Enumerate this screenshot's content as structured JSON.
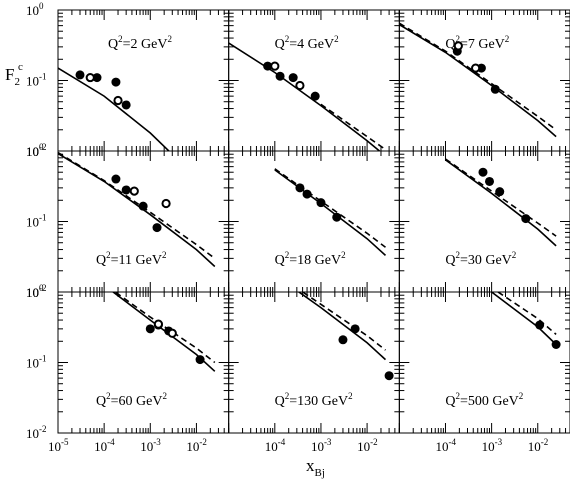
{
  "chart_data": {
    "type": "scatter",
    "xlabel": "x",
    "xlabel_sub": "Bj",
    "ylabel": "F",
    "ylabel_sub": "2",
    "ylabel_sup": "c",
    "x_scale": "log",
    "y_scale": "log",
    "xlim": [
      1e-05,
      0.05
    ],
    "ylim": [
      0.01,
      1
    ],
    "grid": false,
    "x_tick_labels": [
      {
        "base": "10",
        "exp": "-5",
        "value": 1e-05
      },
      {
        "base": "10",
        "exp": "-4",
        "value": 0.0001
      },
      {
        "base": "10",
        "exp": "-3",
        "value": 0.001
      },
      {
        "base": "10",
        "exp": "-2",
        "value": 0.01
      }
    ],
    "y_tick_labels": [
      {
        "base": "10",
        "exp": "0",
        "value": 1
      },
      {
        "base": "10",
        "exp": "-1",
        "value": 0.1
      },
      {
        "base": "10",
        "exp": "-2",
        "value": 0.01
      }
    ],
    "panels": [
      {
        "label": "Q",
        "label_sup": "2",
        "label_value": "=2 GeV",
        "label_unit_sup": "2",
        "solid": [
          [
            1e-05,
            0.15
          ],
          [
            0.0001,
            0.06
          ],
          [
            0.001,
            0.018
          ],
          [
            0.005,
            0.0065
          ]
        ],
        "dashed": [],
        "filled": [
          [
            3e-05,
            0.12
          ],
          [
            7e-05,
            0.11
          ],
          [
            0.00018,
            0.095
          ],
          [
            0.0003,
            0.045
          ]
        ],
        "open": [
          [
            5e-05,
            0.11
          ],
          [
            0.0002,
            0.052
          ]
        ]
      },
      {
        "label": "Q",
        "label_sup": "2",
        "label_value": "=4 GeV",
        "label_unit_sup": "2",
        "solid": [
          [
            1e-05,
            0.34
          ],
          [
            0.0001,
            0.13
          ],
          [
            0.001,
            0.044
          ],
          [
            0.01,
            0.014
          ],
          [
            0.025,
            0.0085
          ]
        ],
        "dashed": [
          [
            0.001,
            0.046
          ],
          [
            0.01,
            0.016
          ],
          [
            0.025,
            0.0105
          ]
        ],
        "filled": [
          [
            7e-05,
            0.16
          ],
          [
            0.00013,
            0.115
          ],
          [
            0.00025,
            0.11
          ],
          [
            0.00075,
            0.06
          ]
        ],
        "open": [
          [
            0.0001,
            0.16
          ],
          [
            0.00035,
            0.085
          ]
        ]
      },
      {
        "label": "Q",
        "label_sup": "2",
        "label_value": "=7 GeV",
        "label_unit_sup": "2",
        "solid": [
          [
            1e-05,
            0.62
          ],
          [
            0.0001,
            0.25
          ],
          [
            0.001,
            0.085
          ],
          [
            0.01,
            0.027
          ],
          [
            0.025,
            0.016
          ]
        ],
        "dashed": [
          [
            1e-05,
            0.65
          ],
          [
            0.0001,
            0.26
          ],
          [
            0.001,
            0.09
          ],
          [
            0.01,
            0.031
          ],
          [
            0.025,
            0.02
          ]
        ],
        "filled": [
          [
            0.00018,
            0.26
          ],
          [
            0.0006,
            0.15
          ],
          [
            0.0012,
            0.075
          ]
        ],
        "open": [
          [
            0.00019,
            0.31
          ],
          [
            0.00045,
            0.15
          ]
        ]
      },
      {
        "label": "Q",
        "label_sup": "2",
        "label_value": "=11 GeV",
        "label_unit_sup": "2",
        "solid": [
          [
            1e-05,
            0.92
          ],
          [
            0.0001,
            0.37
          ],
          [
            0.001,
            0.125
          ],
          [
            0.01,
            0.04
          ],
          [
            0.025,
            0.023
          ]
        ],
        "dashed": [
          [
            1e-05,
            0.95
          ],
          [
            0.0001,
            0.38
          ],
          [
            0.001,
            0.135
          ],
          [
            0.01,
            0.047
          ],
          [
            0.025,
            0.03
          ]
        ],
        "filled": [
          [
            0.00018,
            0.4
          ],
          [
            0.0003,
            0.28
          ],
          [
            0.0007,
            0.165
          ],
          [
            0.0014,
            0.082
          ]
        ],
        "open": [
          [
            0.00045,
            0.27
          ],
          [
            0.0022,
            0.18
          ]
        ]
      },
      {
        "label": "Q",
        "label_sup": "2",
        "label_value": "=18 GeV",
        "label_unit_sup": "2",
        "solid": [
          [
            0.0001,
            0.54
          ],
          [
            0.001,
            0.18
          ],
          [
            0.01,
            0.057
          ],
          [
            0.025,
            0.033
          ]
        ],
        "dashed": [
          [
            0.0001,
            0.56
          ],
          [
            0.001,
            0.195
          ],
          [
            0.01,
            0.068
          ],
          [
            0.025,
            0.043
          ]
        ],
        "filled": [
          [
            0.00035,
            0.3
          ],
          [
            0.0005,
            0.245
          ],
          [
            0.001,
            0.185
          ],
          [
            0.0022,
            0.115
          ]
        ],
        "open": []
      },
      {
        "label": "Q",
        "label_sup": "2",
        "label_value": "=30 GeV",
        "label_unit_sup": "2",
        "solid": [
          [
            0.0001,
            0.75
          ],
          [
            0.001,
            0.25
          ],
          [
            0.01,
            0.078
          ],
          [
            0.025,
            0.045
          ]
        ],
        "dashed": [
          [
            0.0001,
            0.77
          ],
          [
            0.001,
            0.27
          ],
          [
            0.01,
            0.095
          ],
          [
            0.025,
            0.062
          ]
        ],
        "filled": [
          [
            0.00065,
            0.5
          ],
          [
            0.0009,
            0.37
          ],
          [
            0.0015,
            0.265
          ],
          [
            0.0055,
            0.11
          ]
        ],
        "open": []
      },
      {
        "label": "Q",
        "label_sup": "2",
        "label_value": "=60 GeV",
        "label_unit_sup": "2",
        "solid": [
          [
            1e-05,
            3.5
          ],
          [
            0.0001,
            1.25
          ],
          [
            0.001,
            0.4
          ],
          [
            0.01,
            0.13
          ],
          [
            0.025,
            0.075
          ]
        ],
        "dashed": [
          [
            1e-05,
            3.6
          ],
          [
            0.0001,
            1.3
          ],
          [
            0.001,
            0.44
          ],
          [
            0.01,
            0.16
          ],
          [
            0.025,
            0.1
          ]
        ],
        "filled": [
          [
            0.001,
            0.3
          ],
          [
            0.0015,
            0.34
          ],
          [
            0.0025,
            0.28
          ],
          [
            0.012,
            0.11
          ]
        ],
        "open": [
          [
            0.0015,
            0.35
          ],
          [
            0.003,
            0.26
          ]
        ]
      },
      {
        "label": "Q",
        "label_sup": "2",
        "label_value": "=130 GeV",
        "label_unit_sup": "2",
        "solid": [
          [
            1e-05,
            5
          ],
          [
            0.0001,
            1.75
          ],
          [
            0.001,
            0.6
          ],
          [
            0.01,
            0.19
          ],
          [
            0.025,
            0.11
          ]
        ],
        "dashed": [
          [
            1e-05,
            5.2
          ],
          [
            0.0001,
            1.85
          ],
          [
            0.001,
            0.67
          ],
          [
            0.01,
            0.24
          ],
          [
            0.025,
            0.15
          ]
        ],
        "filled": [
          [
            0.003,
            0.21
          ],
          [
            0.0055,
            0.3
          ],
          [
            0.03,
            0.065
          ]
        ],
        "open": []
      },
      {
        "label": "Q",
        "label_sup": "2",
        "label_value": "=500 GeV",
        "label_unit_sup": "2",
        "solid": [
          [
            1e-05,
            9
          ],
          [
            0.0001,
            3
          ],
          [
            0.001,
            1
          ],
          [
            0.01,
            0.32
          ],
          [
            0.025,
            0.18
          ]
        ],
        "dashed": [
          [
            1e-05,
            9.3
          ],
          [
            0.0001,
            3.2
          ],
          [
            0.001,
            1.15
          ],
          [
            0.01,
            0.42
          ],
          [
            0.025,
            0.25
          ]
        ],
        "filled": [
          [
            0.011,
            0.34
          ],
          [
            0.025,
            0.18
          ]
        ],
        "open": []
      }
    ]
  }
}
